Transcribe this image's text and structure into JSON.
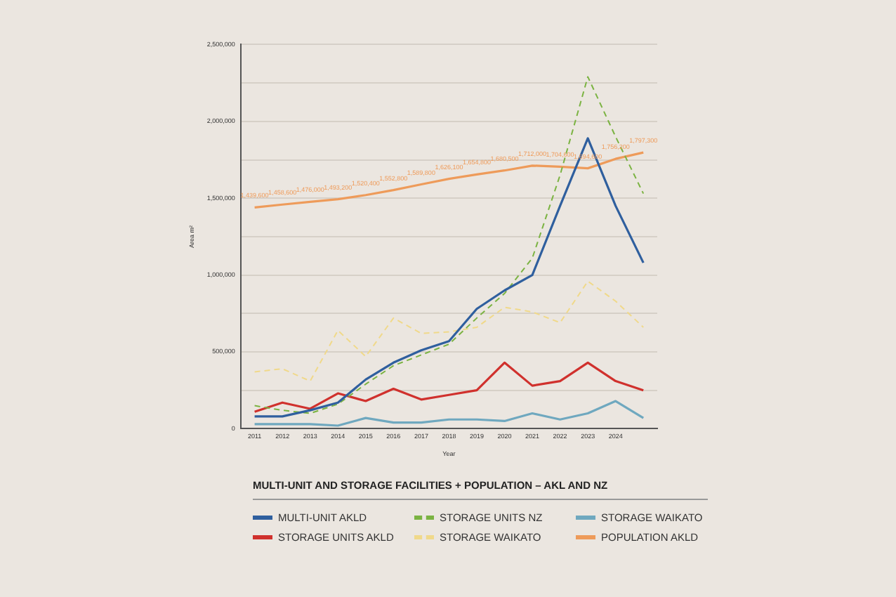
{
  "chart_data": {
    "type": "line",
    "title": "MULTI-UNIT AND STORAGE FACILITIES + POPULATION – AKL AND NZ",
    "xlabel": "Year",
    "ylabel": "Area m²",
    "categories": [
      "2011",
      "2012",
      "2013",
      "2014",
      "2015",
      "2016",
      "2017",
      "2018",
      "2019",
      "2020",
      "2021",
      "2022",
      "2023",
      "2024",
      null
    ],
    "ylim": [
      0,
      2500000
    ],
    "yticks": [
      0,
      {
        "value": 250000,
        "label": null
      },
      {
        "value": 500000,
        "label": "500,000"
      },
      {
        "value": 750000,
        "label": null
      },
      {
        "value": 1000000,
        "label": "1,000,000"
      },
      {
        "value": 1250000,
        "label": null
      },
      {
        "value": 1500000,
        "label": "1,500,000"
      },
      {
        "value": 1750000,
        "label": null
      },
      {
        "value": 2000000,
        "label": "2,000,000"
      },
      {
        "value": 2250000,
        "label": null
      },
      {
        "value": 2500000,
        "label": "2,500,000"
      }
    ],
    "grid": "y",
    "legend": "bottom",
    "marker": "none",
    "series": [
      {
        "name": "MULTI-UNIT AKLD",
        "color": "#2f5f9e",
        "line_style": "solid",
        "values": [
          80000,
          80000,
          120000,
          170000,
          320000,
          430000,
          510000,
          570000,
          780000,
          900000,
          1000000,
          1450000,
          1890000,
          1450000,
          1080000
        ]
      },
      {
        "name": "STORAGE UNITS NZ",
        "color": "#7bb342",
        "line_style": "dashed",
        "values": [
          150000,
          120000,
          100000,
          160000,
          290000,
          410000,
          480000,
          550000,
          720000,
          880000,
          1110000,
          1650000,
          2290000,
          1900000,
          1530000
        ]
      },
      {
        "name": "STORAGE WAIKATO",
        "color": "#6fa8bf",
        "line_style": "solid",
        "values": [
          30000,
          30000,
          30000,
          20000,
          70000,
          40000,
          40000,
          60000,
          60000,
          50000,
          100000,
          60000,
          100000,
          180000,
          70000
        ]
      },
      {
        "name": "STORAGE UNITS AKLD",
        "color": "#d0312d",
        "line_style": "solid",
        "values": [
          110000,
          170000,
          130000,
          230000,
          180000,
          260000,
          190000,
          220000,
          250000,
          430000,
          280000,
          310000,
          430000,
          310000,
          250000
        ]
      },
      {
        "name": "STORAGE WAIKATO",
        "color": "#f0d98a",
        "line_style": "dashed",
        "values": [
          370000,
          390000,
          310000,
          640000,
          470000,
          720000,
          620000,
          630000,
          660000,
          790000,
          760000,
          690000,
          960000,
          830000,
          660000
        ]
      },
      {
        "name": "POPULATION AKLD",
        "color": "#ee9b5a",
        "line_style": "solid",
        "values": [
          1439600,
          1458600,
          1476000,
          1493200,
          1520400,
          1552800,
          1589800,
          1626100,
          1654800,
          1680500,
          1712000,
          1704600,
          1694600,
          1756200,
          1797300
        ],
        "value_labels": [
          "1,439,600",
          "1,458,600",
          "1,476,000",
          "1,493,200",
          "1,520,400",
          "1,552,800",
          "1,589,800",
          "1,626,100",
          "1,654,800",
          "1,680,500",
          "1,712,000",
          "1,704,600",
          "1,694,600",
          "1,756,200",
          "1,797,300"
        ]
      }
    ]
  }
}
